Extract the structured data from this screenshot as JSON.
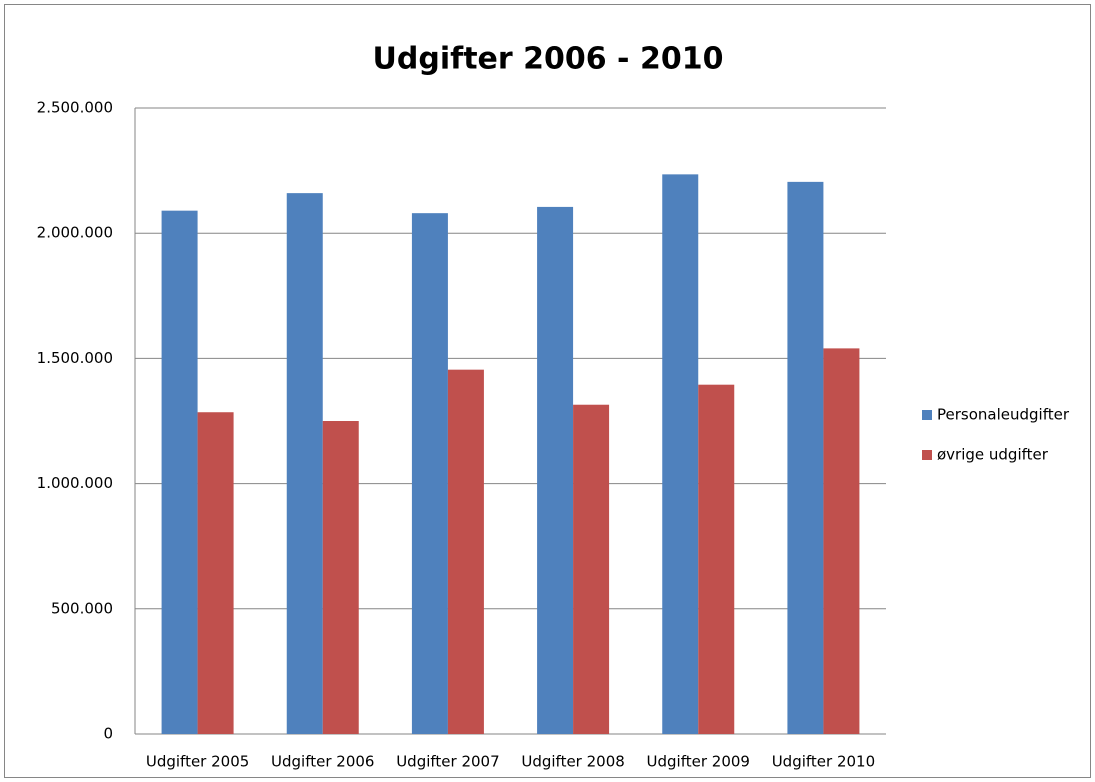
{
  "chart_data": {
    "type": "bar",
    "title": "Udgifter 2006 - 2010",
    "categories": [
      "Udgifter 2005",
      "Udgifter 2006",
      "Udgifter 2007",
      "Udgifter 2008",
      "Udgifter 2009",
      "Udgifter 2010"
    ],
    "series": [
      {
        "name": "Personaleudgifter",
        "color": "#4f81bd",
        "values": [
          2090000,
          2160000,
          2080000,
          2105000,
          2235000,
          2205000
        ]
      },
      {
        "name": "øvrige udgifter",
        "color": "#c0504d",
        "values": [
          1285000,
          1250000,
          1455000,
          1315000,
          1395000,
          1540000
        ]
      }
    ],
    "ylim": [
      0,
      2500000
    ],
    "yticks": [
      0,
      {
        "value": 500000,
        "label": "500.000"
      },
      {
        "value": 1000000,
        "label": "1.000.000"
      },
      {
        "value": 1500000,
        "label": "1.500.000"
      },
      {
        "value": 2000000,
        "label": "2.000.000"
      },
      {
        "value": 2500000,
        "label": "2.500.000"
      }
    ],
    "grid": true,
    "legend": "right"
  }
}
